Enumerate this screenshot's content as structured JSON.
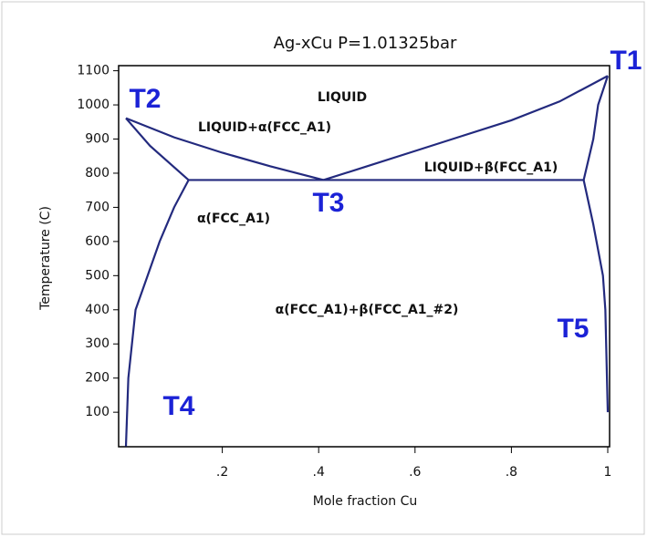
{
  "chart_data": {
    "type": "line",
    "title": "Ag-xCu P=1.01325bar",
    "x_label": "Mole fraction Cu",
    "y_label": "Temperature (C)",
    "xlim": [
      0,
      1
    ],
    "ylim": [
      0,
      1100
    ],
    "xticks": [
      {
        "value": 0.2,
        "label": ".2"
      },
      {
        "value": 0.4,
        "label": ".4"
      },
      {
        "value": 0.6,
        "label": ".6"
      },
      {
        "value": 0.8,
        "label": ".8"
      },
      1
    ],
    "yticks": [
      100,
      200,
      300,
      400,
      500,
      600,
      700,
      800,
      900,
      1000,
      1100
    ],
    "color": "#232a7e",
    "series": [
      {
        "x": [
          0,
          0.1,
          0.2,
          0.3,
          0.41
        ],
        "values": [
          961,
          905,
          860,
          820,
          780
        ]
      },
      {
        "x": [
          0.41,
          0.5,
          0.6,
          0.7,
          0.8,
          0.9,
          1
        ],
        "values": [
          780,
          820,
          865,
          910,
          955,
          1010,
          1085
        ]
      },
      {
        "x": [
          0,
          0.05,
          0.13
        ],
        "values": [
          961,
          880,
          780
        ]
      },
      {
        "x": [
          0.13,
          0.1,
          0.07,
          0.045,
          0.02,
          0.005,
          0
        ],
        "values": [
          780,
          700,
          600,
          500,
          400,
          200,
          0
        ]
      },
      {
        "x": [
          0.13,
          0.95
        ],
        "values": [
          780,
          780
        ]
      },
      {
        "x": [
          0.95,
          0.97,
          0.98,
          1
        ],
        "values": [
          780,
          900,
          1000,
          1085
        ]
      },
      {
        "x": [
          0.95,
          0.97,
          0.99,
          0.995,
          1
        ],
        "values": [
          780,
          650,
          500,
          400,
          100
        ]
      }
    ],
    "annotations": [
      "LIQUID",
      "LIQUID+α(FCC_A1)",
      "LIQUID+β(FCC_A1)",
      "α(FCC_A1)",
      "α(FCC_A1)+β(FCC_A1_#2)",
      "T1",
      "T2",
      "T3",
      "T4",
      "T5"
    ]
  }
}
